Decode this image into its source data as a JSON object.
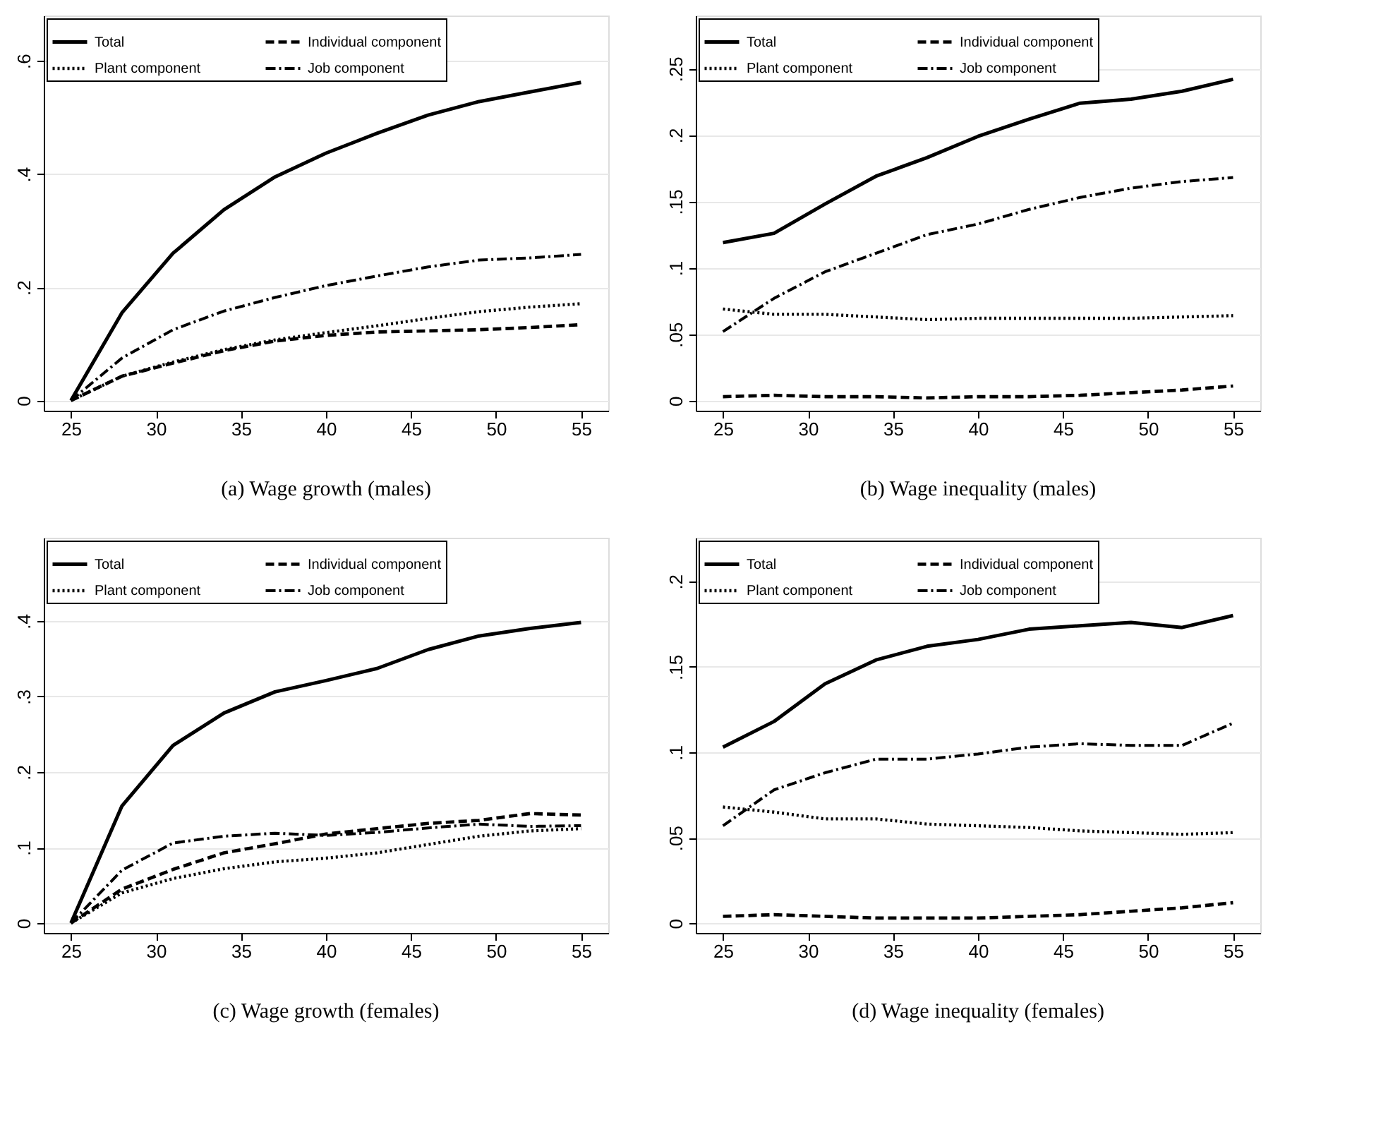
{
  "chart_data": [
    {
      "type": "line",
      "title": "(a) Wage growth (males)",
      "x": [
        25,
        28,
        31,
        34,
        37,
        40,
        43,
        46,
        49,
        52,
        55
      ],
      "xlim": [
        23.4,
        56.6
      ],
      "xticks": [
        25,
        30,
        35,
        40,
        45,
        50,
        55
      ],
      "ylim": [
        -0.018,
        0.68
      ],
      "yticks": [
        0,
        {
          "value": 0.2,
          "label": ".2"
        },
        {
          "value": 0.4,
          "label": ".4"
        },
        {
          "value": 0.6,
          "label": ".6"
        }
      ],
      "grid": "y",
      "legend": "top left",
      "series": [
        {
          "name": "Total",
          "color": "#000000",
          "line_style": "solid",
          "values": [
            0,
            0.155,
            0.26,
            0.337,
            0.395,
            0.437,
            0.472,
            0.504,
            0.528,
            0.545,
            0.562
          ]
        },
        {
          "name": "Individual component",
          "color": "#000000",
          "line_style": "dashed",
          "values": [
            0,
            0.043,
            0.066,
            0.088,
            0.105,
            0.115,
            0.121,
            0.123,
            0.125,
            0.129,
            0.134
          ]
        },
        {
          "name": "Plant component",
          "color": "#000000",
          "line_style": "dotted",
          "values": [
            0,
            0.043,
            0.068,
            0.09,
            0.107,
            0.12,
            0.132,
            0.145,
            0.157,
            0.165,
            0.171
          ]
        },
        {
          "name": "Job component",
          "color": "#000000",
          "line_style": "dashdot",
          "values": [
            0,
            0.075,
            0.125,
            0.158,
            0.182,
            0.203,
            0.22,
            0.236,
            0.248,
            0.252,
            0.258
          ]
        }
      ]
    },
    {
      "type": "line",
      "title": "(b) Wage inequality (males)",
      "x": [
        25,
        28,
        31,
        34,
        37,
        40,
        43,
        46,
        49,
        52,
        55
      ],
      "xlim": [
        23.4,
        56.6
      ],
      "xticks": [
        25,
        30,
        35,
        40,
        45,
        50,
        55
      ],
      "ylim": [
        -0.0076,
        0.29
      ],
      "yticks": [
        0,
        {
          "value": 0.05,
          "label": ".05"
        },
        {
          "value": 0.1,
          "label": ".1"
        },
        {
          "value": 0.15,
          "label": ".15"
        },
        {
          "value": 0.2,
          "label": ".2"
        },
        {
          "value": 0.25,
          "label": ".25"
        }
      ],
      "grid": "y",
      "legend": "top left",
      "series": [
        {
          "name": "Total",
          "color": "#000000",
          "line_style": "solid",
          "values": [
            0.119,
            0.126,
            0.148,
            0.169,
            0.183,
            0.199,
            0.212,
            0.224,
            0.227,
            0.233,
            0.242
          ]
        },
        {
          "name": "Individual component",
          "color": "#000000",
          "line_style": "dashed",
          "values": [
            0.003,
            0.004,
            0.003,
            0.003,
            0.002,
            0.003,
            0.003,
            0.004,
            0.006,
            0.008,
            0.011
          ]
        },
        {
          "name": "Plant component",
          "color": "#000000",
          "line_style": "dotted",
          "values": [
            0.069,
            0.065,
            0.065,
            0.063,
            0.061,
            0.062,
            0.062,
            0.062,
            0.062,
            0.063,
            0.064
          ]
        },
        {
          "name": "Job component",
          "color": "#000000",
          "line_style": "dashdot",
          "values": [
            0.052,
            0.077,
            0.097,
            0.111,
            0.125,
            0.133,
            0.144,
            0.153,
            0.16,
            0.165,
            0.168
          ]
        }
      ]
    },
    {
      "type": "line",
      "title": "(c) Wage growth (females)",
      "x": [
        25,
        28,
        31,
        34,
        37,
        40,
        43,
        46,
        49,
        52,
        55
      ],
      "xlim": [
        23.4,
        56.6
      ],
      "xticks": [
        25,
        30,
        35,
        40,
        45,
        50,
        55
      ],
      "ylim": [
        -0.013,
        0.51
      ],
      "yticks": [
        0,
        {
          "value": 0.1,
          "label": ".1"
        },
        {
          "value": 0.2,
          "label": ".2"
        },
        {
          "value": 0.3,
          "label": ".3"
        },
        {
          "value": 0.4,
          "label": ".4"
        }
      ],
      "grid": "y",
      "legend": "top left",
      "series": [
        {
          "name": "Total",
          "color": "#000000",
          "line_style": "solid",
          "values": [
            0,
            0.155,
            0.235,
            0.278,
            0.306,
            0.321,
            0.337,
            0.362,
            0.38,
            0.39,
            0.398
          ]
        },
        {
          "name": "Individual component",
          "color": "#000000",
          "line_style": "dashed",
          "values": [
            0,
            0.045,
            0.071,
            0.093,
            0.105,
            0.118,
            0.125,
            0.132,
            0.136,
            0.145,
            0.143
          ]
        },
        {
          "name": "Plant component",
          "color": "#000000",
          "line_style": "dotted",
          "values": [
            0,
            0.04,
            0.059,
            0.072,
            0.081,
            0.086,
            0.093,
            0.104,
            0.115,
            0.122,
            0.125
          ]
        },
        {
          "name": "Job component",
          "color": "#000000",
          "line_style": "dashdot",
          "values": [
            0,
            0.07,
            0.106,
            0.115,
            0.119,
            0.116,
            0.12,
            0.126,
            0.131,
            0.128,
            0.129
          ]
        }
      ]
    },
    {
      "type": "line",
      "title": "(d) Wage inequality (females)",
      "x": [
        25,
        28,
        31,
        34,
        37,
        40,
        43,
        46,
        49,
        52,
        55
      ],
      "xlim": [
        23.4,
        56.6
      ],
      "xticks": [
        25,
        30,
        35,
        40,
        45,
        50,
        55
      ],
      "ylim": [
        -0.0057,
        0.2255
      ],
      "yticks": [
        0,
        {
          "value": 0.05,
          "label": ".05"
        },
        {
          "value": 0.1,
          "label": ".1"
        },
        {
          "value": 0.15,
          "label": ".15"
        },
        {
          "value": 0.2,
          "label": ".2"
        }
      ],
      "grid": "y",
      "legend": "top left",
      "series": [
        {
          "name": "Total",
          "color": "#000000",
          "line_style": "solid",
          "values": [
            0.103,
            0.118,
            0.14,
            0.154,
            0.162,
            0.166,
            0.172,
            0.174,
            0.176,
            0.173,
            0.18
          ]
        },
        {
          "name": "Individual component",
          "color": "#000000",
          "line_style": "dashed",
          "values": [
            0.004,
            0.005,
            0.004,
            0.003,
            0.003,
            0.003,
            0.004,
            0.005,
            0.007,
            0.009,
            0.012
          ]
        },
        {
          "name": "Plant component",
          "color": "#000000",
          "line_style": "dotted",
          "values": [
            0.068,
            0.065,
            0.061,
            0.061,
            0.058,
            0.057,
            0.056,
            0.054,
            0.053,
            0.052,
            0.053
          ]
        },
        {
          "name": "Job component",
          "color": "#000000",
          "line_style": "dashdot",
          "values": [
            0.057,
            0.078,
            0.088,
            0.096,
            0.096,
            0.099,
            0.103,
            0.105,
            0.104,
            0.104,
            0.117
          ]
        }
      ]
    }
  ]
}
